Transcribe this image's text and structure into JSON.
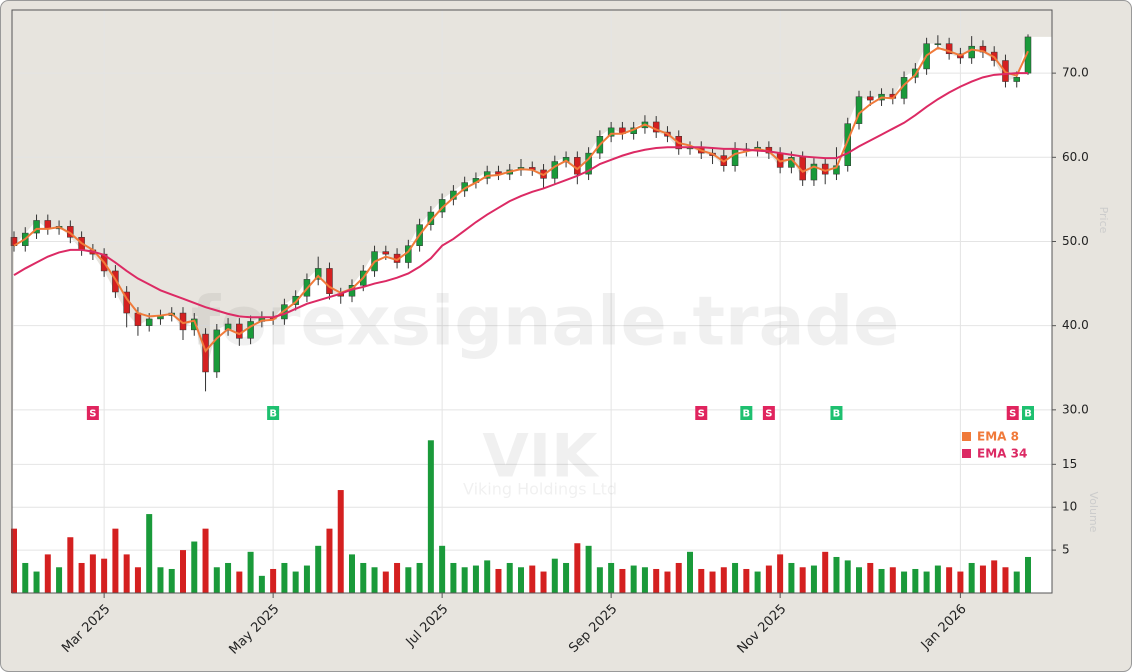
{
  "chart_data": {
    "type": "candlestick",
    "watermark": "forexsignale.trade",
    "ticker": "VIK",
    "company": "Viking Holdings Ltd",
    "ylabel": "Price",
    "volume_label": "Volume",
    "up_color": "#1a9a3a",
    "down_color": "#d42020",
    "buy_color": "#1ec070",
    "sell_color": "#e0245e",
    "grid": true,
    "ylim": [
      28.2,
      77.5
    ],
    "yticks": [
      {
        "value": 30,
        "label": "30.0"
      },
      {
        "value": 40,
        "label": "40.0"
      },
      {
        "value": 50,
        "label": "50.0"
      },
      {
        "value": 60,
        "label": "60.0"
      },
      {
        "value": 70,
        "label": "70.0"
      }
    ],
    "volume_ylim": [
      0,
      19
    ],
    "volume_yticks": [
      5,
      10,
      15
    ],
    "categories": [
      null,
      null,
      null,
      null,
      null,
      null,
      null,
      null,
      "Mar 2025",
      null,
      null,
      null,
      null,
      null,
      null,
      null,
      null,
      null,
      null,
      null,
      null,
      null,
      null,
      "May 2025",
      null,
      null,
      null,
      null,
      null,
      null,
      null,
      null,
      null,
      null,
      null,
      null,
      null,
      null,
      "Jul 2025",
      null,
      null,
      null,
      null,
      null,
      null,
      null,
      null,
      null,
      null,
      null,
      null,
      null,
      null,
      "Sep 2025",
      null,
      null,
      null,
      null,
      null,
      null,
      null,
      null,
      null,
      null,
      null,
      null,
      null,
      null,
      "Nov 2025",
      null,
      null,
      null,
      null,
      null,
      null,
      null,
      null,
      null,
      null,
      null,
      null,
      null,
      null,
      null,
      "Jan 2026",
      null,
      null,
      null,
      null,
      null,
      null
    ],
    "open": [
      50.5,
      49.5,
      51,
      52.5,
      51.5,
      51.8,
      50.5,
      49,
      48.5,
      46.5,
      44,
      41.5,
      40,
      40.8,
      41.2,
      41.5,
      39.5,
      39,
      34.5,
      39.5,
      40.2,
      38.5,
      40.5,
      41,
      40.8,
      42.5,
      43.5,
      45.5,
      46.8,
      43.8,
      43.5,
      44.8,
      46.5,
      48.8,
      48.5,
      47.5,
      49.5,
      52,
      53.5,
      55,
      56,
      57,
      57.5,
      58.3,
      58,
      58.5,
      58.8,
      58.5,
      57.5,
      59.5,
      60,
      58,
      60.5,
      62.5,
      63.5,
      62.8,
      63.5,
      64.2,
      63,
      62.5,
      61,
      61.2,
      60.5,
      60.2,
      59,
      61,
      60.8,
      61.2,
      60.5,
      58.8,
      60,
      57.3,
      59.2,
      58,
      59,
      64,
      67.2,
      66.8,
      67.5,
      67,
      69.5,
      70.5,
      73.5,
      73.5,
      72.3,
      71.8,
      73.2,
      72.5,
      71.5,
      69,
      70
    ],
    "high": [
      51.2,
      51.7,
      53.2,
      53.2,
      52.5,
      52.5,
      51.2,
      49.7,
      49.2,
      47.2,
      44.7,
      42.2,
      41.5,
      41.9,
      42.2,
      42.2,
      41.5,
      39.7,
      40.2,
      40.9,
      40.9,
      41.2,
      41.7,
      41.7,
      43.2,
      44.2,
      46.2,
      48.2,
      47.5,
      44.5,
      45.5,
      47.2,
      49.5,
      49.5,
      49.2,
      50.2,
      52.7,
      54.2,
      55.7,
      56.7,
      57.7,
      58.2,
      59,
      59,
      59.2,
      59.8,
      59.5,
      59.2,
      60.2,
      60.7,
      60.7,
      61.2,
      63.2,
      64.2,
      64.2,
      64.2,
      65,
      64.9,
      63.7,
      63.2,
      61.9,
      61.9,
      61.2,
      60.9,
      61.8,
      61.7,
      61.9,
      61.9,
      61.2,
      60.7,
      60.7,
      59.9,
      59.9,
      61.2,
      64.7,
      67.9,
      67.9,
      68.2,
      68.2,
      70.2,
      71.2,
      74.2,
      74.5,
      74.2,
      73,
      74.4,
      73.9,
      73.2,
      72.2,
      70.2,
      74.6
    ],
    "low": [
      48.8,
      48.8,
      50.3,
      50.8,
      50.8,
      49.8,
      48.3,
      47.8,
      45.8,
      43.3,
      39.8,
      38.8,
      39.3,
      40.1,
      40.5,
      38.3,
      38.8,
      32.2,
      33.8,
      38.8,
      37.6,
      37.8,
      39.8,
      40.1,
      40.1,
      41.8,
      42.8,
      44.8,
      43.1,
      42.6,
      42.8,
      44.1,
      45.8,
      47.8,
      46.8,
      46.8,
      48.8,
      51.3,
      52.8,
      54.3,
      55.3,
      56.3,
      56.8,
      57.3,
      57.3,
      57.8,
      57.8,
      56.3,
      56.8,
      58.8,
      56.8,
      57.3,
      59.8,
      61.8,
      62.1,
      62.1,
      62.8,
      62.3,
      61.8,
      60.3,
      60.3,
      59.8,
      59.2,
      58.3,
      58.3,
      60.1,
      60.1,
      59.8,
      58.1,
      58.1,
      56.6,
      56.6,
      56.8,
      57.3,
      58.3,
      63.3,
      66.1,
      66.1,
      66.3,
      66.3,
      68.8,
      69.8,
      72.8,
      71.6,
      71.1,
      71.1,
      71.8,
      70.8,
      68.3,
      68.3,
      69.8
    ],
    "close": [
      49.5,
      51,
      52.5,
      51.5,
      51.8,
      50.5,
      49,
      48.5,
      46.5,
      44,
      41.5,
      40,
      40.8,
      41.2,
      41.5,
      39.5,
      40.8,
      34.5,
      39.5,
      40.2,
      38.5,
      40.5,
      41,
      40.8,
      42.5,
      43.5,
      45.5,
      46.8,
      43.8,
      43.5,
      44.8,
      46.5,
      48.8,
      48.5,
      47.5,
      49.5,
      52,
      53.5,
      55,
      56,
      57,
      57.5,
      58.3,
      58,
      58.5,
      58.8,
      58.5,
      57.5,
      59.5,
      60,
      58,
      60.5,
      62.5,
      63.5,
      62.8,
      63.5,
      64.2,
      63,
      62.5,
      61,
      61.2,
      60.5,
      60.2,
      59,
      61,
      60.8,
      61.2,
      60.5,
      58.8,
      60,
      57.3,
      59.2,
      58,
      59,
      64,
      67.2,
      66.8,
      67.5,
      67,
      69.5,
      70.5,
      73.5,
      73.5,
      72.3,
      71.8,
      73.2,
      72.5,
      71.5,
      69,
      69.5,
      74.3
    ],
    "volume": [
      7.5,
      3.5,
      2.5,
      4.5,
      3,
      6.5,
      3.5,
      4.5,
      4,
      7.5,
      4.5,
      3,
      9.2,
      3,
      2.8,
      5,
      6,
      7.5,
      3,
      3.5,
      2.5,
      4.8,
      2,
      2.8,
      3.5,
      2.5,
      3.2,
      5.5,
      7.5,
      12,
      4.5,
      3.5,
      3,
      2.5,
      3.5,
      3,
      3.5,
      17.8,
      5.5,
      3.5,
      3,
      3.2,
      3.8,
      2.8,
      3.5,
      3,
      3.2,
      2.5,
      4,
      3.5,
      5.8,
      5.5,
      3,
      3.5,
      2.8,
      3.2,
      3,
      2.8,
      2.5,
      3.5,
      4.8,
      2.8,
      2.5,
      3,
      3.5,
      2.8,
      2.5,
      3.2,
      4.5,
      3.5,
      3,
      3.2,
      4.8,
      4.2,
      3.8,
      3,
      3.5,
      2.8,
      3,
      2.5,
      2.8,
      2.5,
      3.2,
      3,
      2.5,
      3.5,
      3.2,
      3.8,
      3,
      2.5,
      4.2
    ],
    "series": [
      {
        "name": "EMA 8",
        "color": "#f07a3a",
        "values": [
          49.5,
          50.3,
          51.5,
          51.5,
          51.7,
          51,
          49.8,
          49,
          47.5,
          45.5,
          43.2,
          41.5,
          41.1,
          41.2,
          41.4,
          40.3,
          40.6,
          37,
          38.5,
          39.6,
          39,
          39.9,
          40.6,
          40.7,
          41.8,
          42.8,
          44.4,
          45.9,
          44.6,
          43.9,
          44.4,
          45.7,
          47.6,
          48.2,
          47.8,
          48.8,
          50.8,
          52.5,
          54,
          55.2,
          56.3,
          57,
          57.8,
          57.9,
          58.3,
          58.6,
          58.5,
          57.9,
          58.9,
          59.6,
          58.6,
          59.8,
          61.5,
          62.8,
          62.8,
          63.3,
          63.9,
          63.3,
          62.8,
          61.7,
          61.4,
          60.8,
          60.4,
          59.5,
          60.4,
          60.7,
          61,
          60.7,
          59.5,
          59.8,
          58.3,
          58.9,
          58.4,
          58.8,
          62,
          65.2,
          66.3,
          67.1,
          67,
          68.6,
          69.8,
          72.1,
          73,
          72.6,
          72.1,
          72.8,
          72.6,
          71.9,
          70.1,
          69.7,
          72.6
        ]
      },
      {
        "name": "EMA 34",
        "color": "#dc2a64",
        "values": [
          46,
          46.8,
          47.5,
          48.2,
          48.7,
          49,
          49,
          48.8,
          48.4,
          47.5,
          46.5,
          45.6,
          44.9,
          44.2,
          43.7,
          43.2,
          42.7,
          42.2,
          41.8,
          41.4,
          41.1,
          41,
          41,
          41,
          41.4,
          42,
          42.6,
          43,
          43.4,
          43.8,
          44.3,
          44.6,
          45,
          45.3,
          45.7,
          46.2,
          47,
          48,
          49.5,
          50.3,
          51.3,
          52.3,
          53.2,
          54,
          54.8,
          55.4,
          55.9,
          56.3,
          56.8,
          57.3,
          57.8,
          58.4,
          59.2,
          59.7,
          60.2,
          60.6,
          60.9,
          61.1,
          61.2,
          61.2,
          61.2,
          61.2,
          61.1,
          61,
          61,
          60.9,
          60.8,
          60.7,
          60.5,
          60.3,
          60.1,
          60,
          59.9,
          59.9,
          60.5,
          61.3,
          62,
          62.7,
          63.4,
          64.1,
          65,
          66,
          66.9,
          67.7,
          68.4,
          69,
          69.5,
          69.8,
          69.9,
          70,
          70
        ]
      }
    ],
    "signals": [
      null,
      null,
      null,
      null,
      null,
      null,
      null,
      "S",
      null,
      null,
      null,
      null,
      null,
      null,
      null,
      null,
      null,
      null,
      null,
      null,
      null,
      null,
      null,
      "B",
      null,
      null,
      null,
      null,
      null,
      null,
      null,
      null,
      null,
      null,
      null,
      null,
      null,
      null,
      null,
      null,
      null,
      null,
      null,
      null,
      null,
      null,
      null,
      null,
      null,
      null,
      null,
      null,
      null,
      null,
      null,
      null,
      null,
      null,
      null,
      null,
      null,
      "S",
      null,
      null,
      null,
      "B",
      null,
      "S",
      null,
      null,
      null,
      null,
      null,
      "B",
      null,
      null,
      null,
      null,
      null,
      null,
      null,
      null,
      null,
      null,
      null,
      null,
      null,
      null,
      null,
      "S",
      "B"
    ]
  }
}
